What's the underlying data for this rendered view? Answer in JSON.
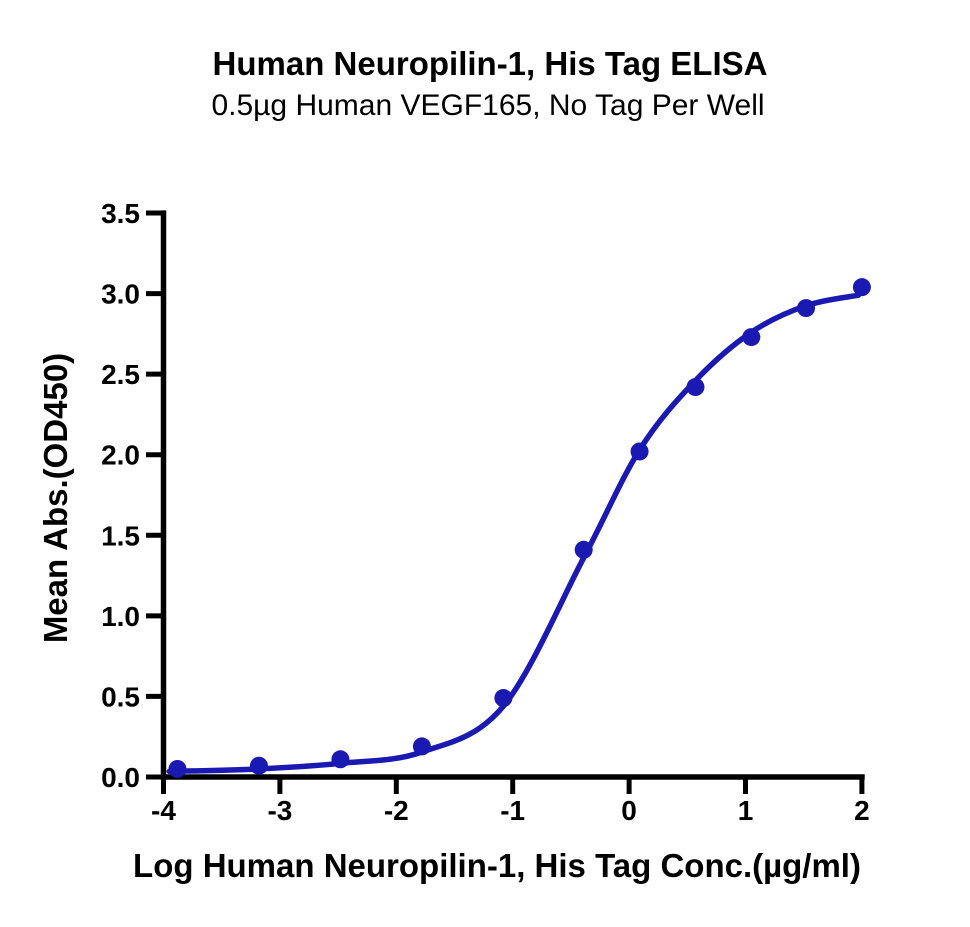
{
  "figure": {
    "title": "Human Neuropilin-1, His Tag ELISA",
    "subtitle": "0.5µg Human VEGF165, No Tag Per Well"
  },
  "chart_data": {
    "type": "scatter",
    "title": "Human Neuropilin-1, His Tag ELISA",
    "subtitle": "0.5µg Human VEGF165, No Tag Per Well",
    "xlabel": "Log Human Neuropilin-1, His Tag Conc.(µg/ml)",
    "ylabel": "Mean Abs.(OD450)",
    "xlim": [
      -4,
      2
    ],
    "ylim": [
      0,
      3.5
    ],
    "grid": false,
    "legend_position": "none",
    "x_ticks": [
      -4,
      -3,
      -2,
      -1,
      0,
      1,
      2
    ],
    "x_tick_labels": [
      "-4",
      "-3",
      "-2",
      "-1",
      "0",
      "1",
      "2"
    ],
    "y_ticks": [
      0,
      0.5,
      1,
      1.5,
      2,
      2.5,
      3,
      3.5
    ],
    "y_tick_labels": [
      "0.0",
      "0.5",
      "1.0",
      "1.5",
      "2.0",
      "2.5",
      "3.0",
      "3.5"
    ],
    "series": [
      {
        "name": "Human Neuropilin-1, His Tag",
        "marker": "circle",
        "marker_color": "#1a1ab2",
        "line_color": "#1a1ab2",
        "x": [
          -3.88,
          -3.18,
          -2.48,
          -1.78,
          -1.08,
          -0.39,
          0.09,
          0.57,
          1.05,
          1.52,
          2.0
        ],
        "y": [
          0.05,
          0.07,
          0.11,
          0.19,
          0.49,
          1.41,
          2.02,
          2.42,
          2.73,
          2.91,
          3.04
        ]
      }
    ],
    "fit_curve": {
      "model": "4PL sigmoid",
      "color": "#1a1ab2",
      "anchors_x": [
        -3.95,
        -3.18,
        -2.48,
        -1.78,
        -1.08,
        -0.39,
        0.09,
        0.57,
        1.05,
        1.52,
        1.97
      ],
      "anchors_y": [
        0.035,
        0.05,
        0.085,
        0.155,
        0.44,
        1.36,
        2.03,
        2.46,
        2.76,
        2.925,
        2.99
      ]
    }
  },
  "style_colors": {
    "axis": "#000000",
    "curve_blue": "#1a1ab2",
    "background": "#ffffff"
  }
}
